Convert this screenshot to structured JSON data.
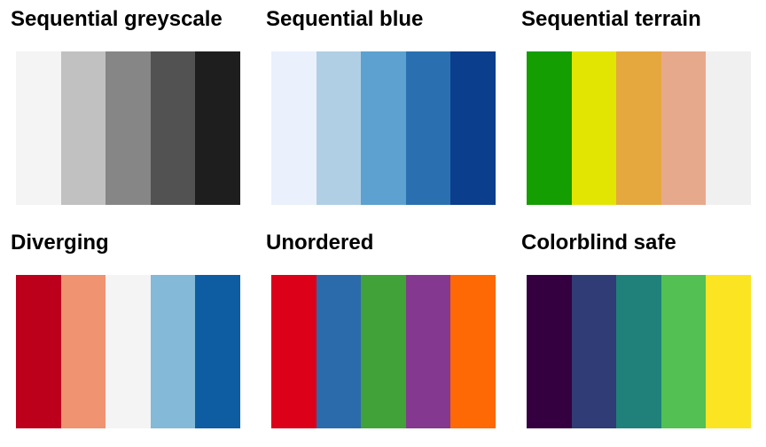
{
  "palettes": [
    {
      "title": "Sequential greyscale",
      "colors": [
        "#f4f4f4",
        "#c1c1c1",
        "#868686",
        "#525252",
        "#1e1e1e"
      ]
    },
    {
      "title": "Sequential blue",
      "colors": [
        "#eaf0fc",
        "#b0cfe4",
        "#5ca1cf",
        "#2a70b1",
        "#0b3e8c"
      ]
    },
    {
      "title": "Sequential terrain",
      "colors": [
        "#149e01",
        "#e2e502",
        "#e5a83e",
        "#e7a98b",
        "#f0f0f0"
      ]
    },
    {
      "title": "Diverging",
      "colors": [
        "#bc001c",
        "#f09370",
        "#f4f4f4",
        "#84b9d7",
        "#0e5da2"
      ]
    },
    {
      "title": "Unordered",
      "colors": [
        "#dc0019",
        "#2c6bab",
        "#41a23a",
        "#85388f",
        "#fe6906"
      ]
    },
    {
      "title": "Colorblind safe",
      "colors": [
        "#350040",
        "#2f3c75",
        "#1f817a",
        "#52c052",
        "#fbe421"
      ]
    }
  ]
}
